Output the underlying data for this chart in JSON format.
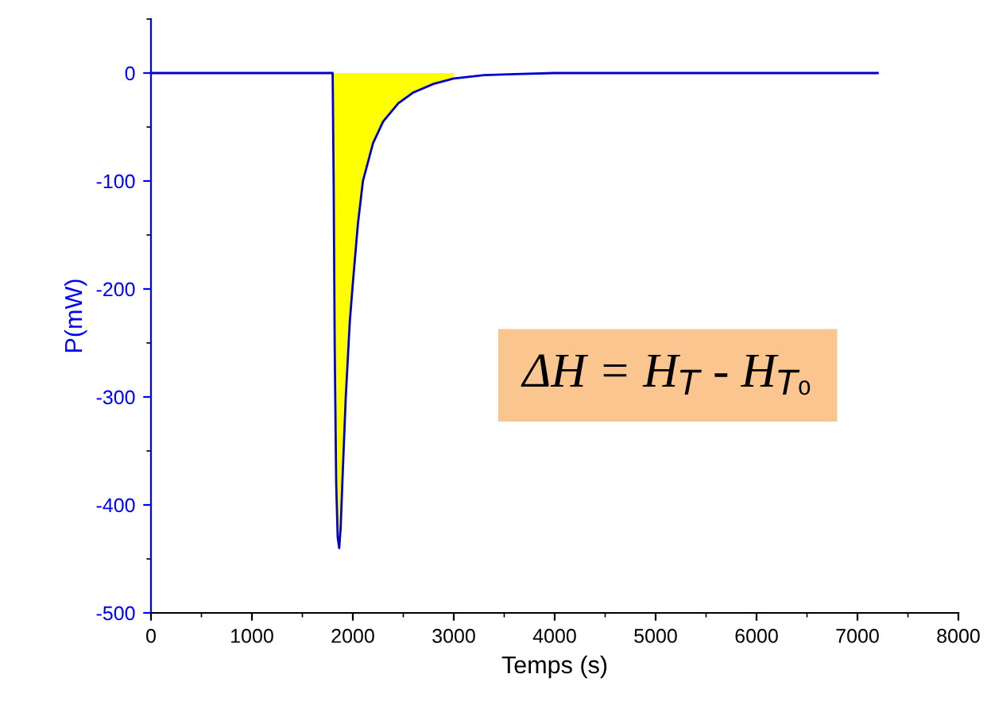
{
  "chart_data": {
    "type": "line",
    "xlabel": "Temps (s)",
    "ylabel": "P(mW)",
    "xlim": [
      0,
      8000
    ],
    "xticks": [
      0,
      1000,
      2000,
      3000,
      4000,
      5000,
      6000,
      7000,
      8000
    ],
    "ylim": [
      -500,
      50
    ],
    "yticks": [
      -500,
      -400,
      -300,
      -200,
      -100,
      0
    ],
    "grid": false,
    "legend": false,
    "annotations": [
      "ΔH = H$_{T}$ - H$_{T₀}$"
    ],
    "series": [
      {
        "type": "area",
        "color": "#ffff00",
        "x": [
          1800,
          1810,
          1820,
          1835,
          1850,
          1865,
          1880,
          1900,
          1930,
          1970,
          2000,
          2050,
          2100,
          2200,
          2300,
          2450,
          2600,
          2800,
          3000
        ],
        "values": [
          0,
          -100,
          -250,
          -380,
          -430,
          -440,
          -420,
          -370,
          -300,
          -230,
          -195,
          -140,
          -100,
          -65,
          -45,
          -28,
          -18,
          -10,
          -5
        ]
      },
      {
        "color": "#0000cc",
        "x": [
          0,
          1800,
          1810,
          1820,
          1835,
          1850,
          1865,
          1880,
          1900,
          1930,
          1970,
          2000,
          2050,
          2100,
          2200,
          2300,
          2450,
          2600,
          2800,
          3000,
          3300,
          3600,
          4000,
          7200
        ],
        "values": [
          0,
          0,
          -100,
          -250,
          -380,
          -430,
          -440,
          -420,
          -370,
          -300,
          -230,
          -195,
          -140,
          -100,
          -65,
          -45,
          -28,
          -18,
          -10,
          -5,
          -2,
          -1,
          0,
          0
        ]
      }
    ]
  }
}
